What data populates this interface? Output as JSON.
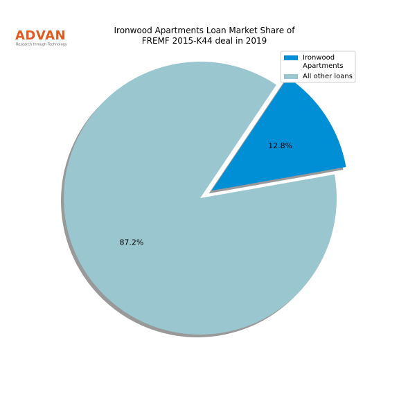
{
  "logo": {
    "name": "ADVAN",
    "tagline": "Research through Technology"
  },
  "chart_data": {
    "type": "pie",
    "title": "Ironwood Apartments Loan Market Share of\nFREMF 2015-K44 deal in 2019",
    "labels": [
      "Ironwood\nApartments",
      "All other loans"
    ],
    "values": [
      12.8,
      87.2
    ],
    "value_labels": [
      "12.8%",
      "87.2%"
    ],
    "colors": [
      "#008fd5",
      "#9ac6cf"
    ],
    "explode": [
      0.1,
      0
    ],
    "shadow": true,
    "legend": "upper right"
  }
}
